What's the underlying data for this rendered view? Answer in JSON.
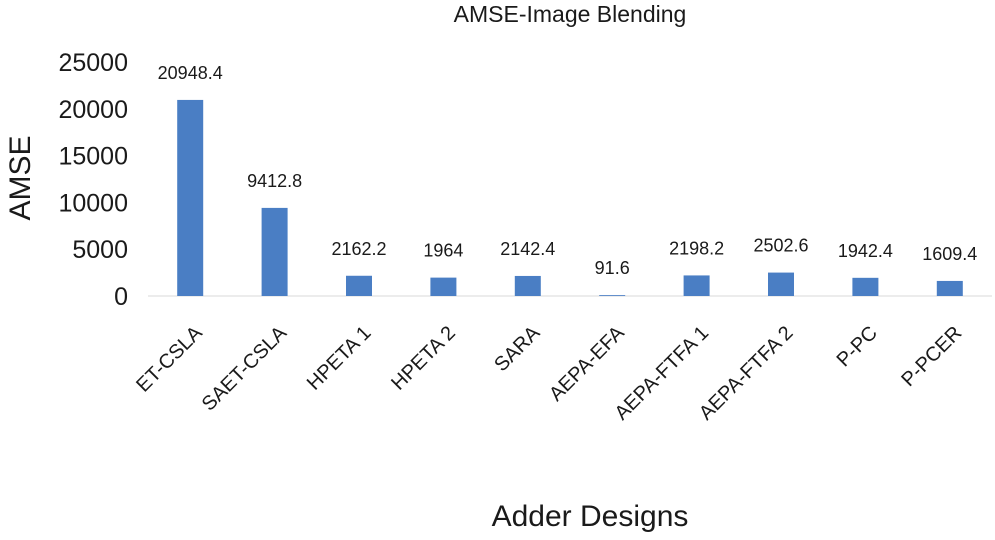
{
  "chart_data": {
    "type": "bar",
    "title": "AMSE-Image Blending",
    "xlabel": "Adder Designs",
    "ylabel": "AMSE",
    "categories": [
      "ET-CSLA",
      "SAET-CSLA",
      "HPETA 1",
      "HPETA 2",
      "SARA",
      "AEPA-EFA",
      "AEPA-FTFA 1",
      "AEPA-FTFA 2",
      "P-PC",
      "P-PCER"
    ],
    "values": [
      20948.4,
      9412.8,
      2162.2,
      1964,
      2142.4,
      91.6,
      2198.2,
      2502.6,
      1942.4,
      1609.4
    ],
    "data_labels": [
      "20948.4",
      "9412.8",
      "2162.2",
      "1964",
      "2142.4",
      "91.6",
      "2198.2",
      "2502.6",
      "1942.4",
      "1609.4"
    ],
    "yticks": [
      0,
      5000,
      10000,
      15000,
      20000,
      25000
    ],
    "ylim": [
      0,
      25000
    ],
    "grid": false,
    "legend": "none",
    "colors": {
      "bar": "#4a7ec4",
      "baseline": "#d9d9d9"
    }
  }
}
